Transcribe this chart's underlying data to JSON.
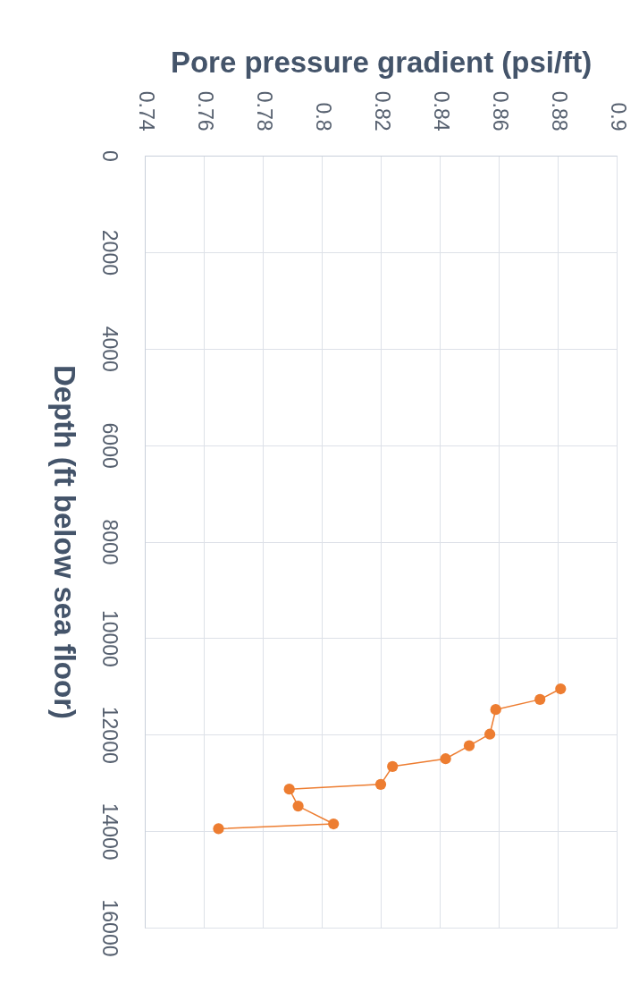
{
  "chart_data": {
    "type": "line",
    "xlabel": "Pore pressure gradient (psi/ft)",
    "ylabel": "Depth (ft below sea floor)",
    "x": [
      0.881,
      0.874,
      0.859,
      0.857,
      0.85,
      0.842,
      0.824,
      0.82,
      0.789,
      0.792,
      0.804,
      0.765
    ],
    "series": [
      {
        "color": "#ed7d31",
        "values": [
          11050,
          11270,
          11480,
          11990,
          12230,
          12500,
          12660,
          13030,
          13130,
          13480,
          13850,
          13950
        ]
      }
    ],
    "xlim": [
      0.74,
      0.9
    ],
    "xticks": [
      0.74,
      0.76,
      0.78,
      0.8,
      0.82,
      0.84,
      0.86,
      0.88,
      0.9
    ],
    "ylim": [
      16000,
      0
    ],
    "yticks": [
      0,
      2000,
      4000,
      6000,
      8000,
      10000,
      12000,
      14000,
      16000
    ],
    "grid": true,
    "marker": "circle",
    "line_style": "solid"
  }
}
